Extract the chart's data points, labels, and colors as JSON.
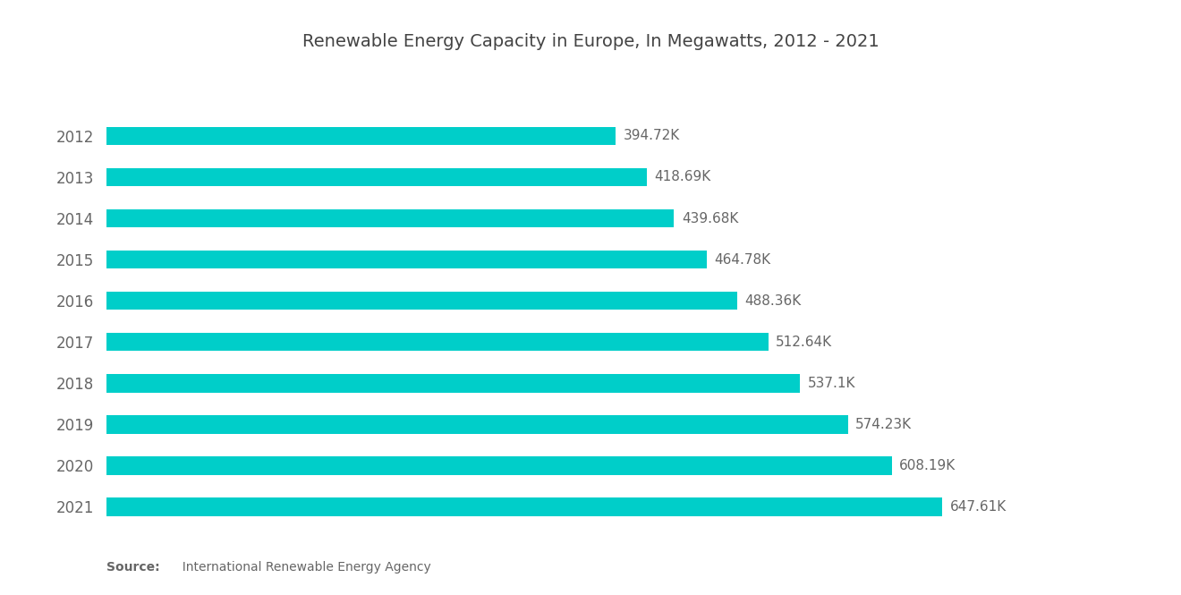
{
  "title": "Renewable Energy Capacity in Europe, In Megawatts, 2012 - 2021",
  "years": [
    "2012",
    "2013",
    "2014",
    "2015",
    "2016",
    "2017",
    "2018",
    "2019",
    "2020",
    "2021"
  ],
  "values": [
    394720,
    418690,
    439680,
    464780,
    488360,
    512640,
    537100,
    574230,
    608190,
    647610
  ],
  "labels": [
    "394.72K",
    "418.69K",
    "439.68K",
    "464.78K",
    "488.36K",
    "512.64K",
    "537.1K",
    "574.23K",
    "608.19K",
    "647.61K"
  ],
  "bar_color": "#00CEC9",
  "background_color": "#ffffff",
  "title_fontsize": 14,
  "label_fontsize": 11,
  "ytick_fontsize": 12,
  "source_bold": "Source:",
  "source_text": "  International Renewable Energy Agency",
  "xlim": [
    0,
    750000
  ]
}
